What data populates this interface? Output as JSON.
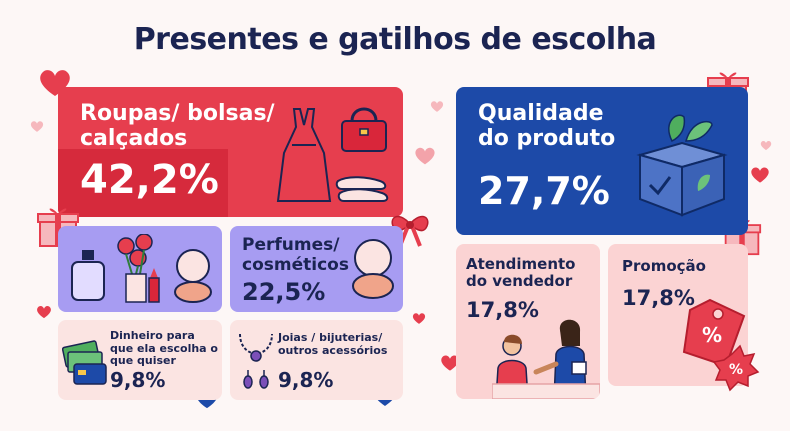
{
  "title": "Presentes e gatilhos de escolha",
  "cards": {
    "roupas": {
      "label": "Roupas/ bolsas/ calçados",
      "value": "42,2%"
    },
    "perfumes": {
      "label": "Perfumes/ cosméticos",
      "value": "22,5%"
    },
    "dinheiro": {
      "label": "Dinheiro para que ela escolha o que quiser",
      "value": "9,8%"
    },
    "joias": {
      "label": "Joias / bijuterias/ outros acessórios",
      "value": "9,8%"
    },
    "qualidade": {
      "label": "Qualidade do produto",
      "value": "27,7%"
    },
    "atendimento": {
      "label": "Atendimento do vendedor",
      "value": "17,8%"
    },
    "promocao": {
      "label": "Promoção",
      "value": "17,8%"
    }
  },
  "icons": {
    "roupas": [
      "dress-icon",
      "handbag-icon",
      "shoes-icon"
    ],
    "perfumes": [
      "perfume-bottle-icon",
      "flowers-icon",
      "lipstick-icon",
      "compact-powder-icon"
    ],
    "perfumes2": [
      "compact-powder-icon"
    ],
    "dinheiro": [
      "money-card-icon"
    ],
    "joias": [
      "necklace-earrings-icon"
    ],
    "qualidade": [
      "box-leaves-icon"
    ],
    "atendimento": [
      "salespeople-icon"
    ],
    "promocao": [
      "price-tag-icon"
    ]
  },
  "colors": {
    "red": "#e63e4e",
    "purple": "#a79cf2",
    "blue": "#1d4aa8",
    "pink": "#fbd3d3",
    "light-pink": "#fbe4e2",
    "navy": "#1b2452"
  }
}
